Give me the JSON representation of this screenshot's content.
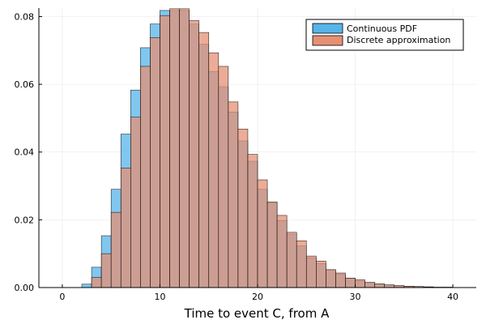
{
  "chart_data": {
    "type": "bar",
    "xlabel": "Time to event C, from A",
    "ylabel": "",
    "xlim": [
      -2.4,
      42.4
    ],
    "ylim": [
      0,
      0.0825
    ],
    "xticks": [
      0,
      10,
      20,
      30,
      40
    ],
    "yticks": [
      0,
      0.02,
      0.04,
      0.06,
      0.08
    ],
    "ytick_labels": [
      "0.00",
      "0.02",
      "0.04",
      "0.06",
      "0.08"
    ],
    "xtick_labels": [
      "0",
      "10",
      "20",
      "30",
      "40"
    ],
    "bin_edges": [
      2,
      3,
      4,
      5,
      6,
      7,
      8,
      9,
      10,
      11,
      12,
      13,
      14,
      15,
      16,
      17,
      18,
      19,
      20,
      21,
      22,
      23,
      24,
      25,
      26,
      27,
      28,
      29,
      30,
      31,
      32,
      33,
      34,
      35,
      36,
      37,
      38,
      39,
      40
    ],
    "grid": true,
    "legend_position": "top-right",
    "series": [
      {
        "name": "Continuous PDF",
        "color": "#56b4e9",
        "values": [
          0.001,
          0.006,
          0.0153,
          0.029,
          0.0453,
          0.0583,
          0.0708,
          0.0778,
          0.0818,
          0.0818,
          0.0818,
          0.0778,
          0.0718,
          0.0638,
          0.0593,
          0.0518,
          0.0433,
          0.0373,
          0.029,
          0.025,
          0.0198,
          0.0158,
          0.0123,
          0.0088,
          0.0071,
          0.0051,
          0.0039,
          0.0027,
          0.0019,
          0.0015,
          0.001,
          0.0007,
          0.0005,
          0.0004,
          0.0003,
          0.0002,
          0.0001,
          0.0001
        ]
      },
      {
        "name": "Discrete approximation",
        "color": "#e69074",
        "values": [
          0.0,
          0.003,
          0.01,
          0.0222,
          0.0353,
          0.0503,
          0.0653,
          0.0738,
          0.0803,
          0.0823,
          0.0823,
          0.0788,
          0.0753,
          0.0693,
          0.0653,
          0.0548,
          0.0468,
          0.0393,
          0.0318,
          0.0253,
          0.0213,
          0.0163,
          0.0138,
          0.0093,
          0.0078,
          0.0053,
          0.0043,
          0.0028,
          0.0023,
          0.0015,
          0.0011,
          0.0008,
          0.0006,
          0.0004,
          0.0003,
          0.0002,
          0.0001,
          0.0001
        ]
      }
    ]
  }
}
